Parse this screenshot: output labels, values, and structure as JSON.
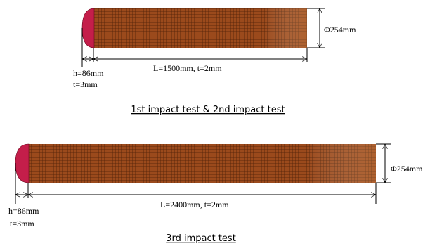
{
  "figures": [
    {
      "diameter": "Φ254mm",
      "length": "L=1500mm, t=2mm",
      "head_height": "h=86mm",
      "head_thickness": "t=3mm",
      "caption": "1st impact test & 2nd impact test"
    },
    {
      "diameter": "Φ254mm",
      "length": "L=2400mm, t=2mm",
      "head_height": "h=86mm",
      "head_thickness": "t=3mm",
      "caption": "3rd impact test"
    }
  ]
}
